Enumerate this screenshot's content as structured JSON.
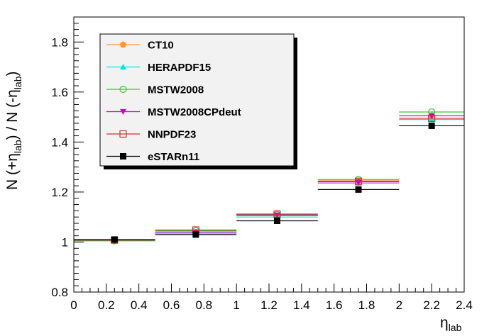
{
  "chart_data": {
    "type": "scatter",
    "xlabel_main": "η",
    "xlabel_sub": "lab",
    "ylabel_parts": {
      "n1": "N (+η",
      "sub1": "lab",
      "mid": ") / N (-η",
      "sub2": "lab",
      "end": ")"
    },
    "xlim": [
      0,
      2.4
    ],
    "ylim": [
      0.8,
      1.9
    ],
    "xticks": [
      "0",
      "0.2",
      "0.4",
      "0.6",
      "0.8",
      "1",
      "1.2",
      "1.4",
      "1.6",
      "1.8",
      "2",
      "2.2",
      "2.4"
    ],
    "yticks": [
      "0.8",
      "1",
      "1.2",
      "1.4",
      "1.6",
      "1.8"
    ],
    "grid": false,
    "legend_position": "top-left",
    "bins": [
      [
        0,
        0.5
      ],
      [
        0.5,
        1.0
      ],
      [
        1.0,
        1.5
      ],
      [
        1.5,
        2.0
      ],
      [
        2.0,
        2.4
      ]
    ],
    "series": [
      {
        "name": "CT10",
        "color": "#ff9933",
        "marker": "circle-filled",
        "x": [
          0.25,
          0.75,
          1.25,
          1.75,
          2.2
        ],
        "values": [
          1.005,
          1.04,
          1.105,
          1.245,
          1.505
        ]
      },
      {
        "name": "HERAPDF15",
        "color": "#00e6e6",
        "marker": "triangle-up-filled",
        "x": [
          0.25,
          0.75,
          1.25,
          1.75,
          2.2
        ],
        "values": [
          1.005,
          1.035,
          1.1,
          1.235,
          1.49
        ]
      },
      {
        "name": "MSTW2008",
        "color": "#33cc33",
        "marker": "circle-open",
        "x": [
          0.25,
          0.75,
          1.25,
          1.75,
          2.2
        ],
        "values": [
          1.005,
          1.045,
          1.11,
          1.25,
          1.52
        ]
      },
      {
        "name": "MSTW2008CPdeut",
        "color": "#cc00cc",
        "marker": "triangle-down-filled",
        "x": [
          0.25,
          0.75,
          1.25,
          1.75,
          2.2
        ],
        "values": [
          1.008,
          1.04,
          1.108,
          1.24,
          1.505
        ]
      },
      {
        "name": "NNPDF23",
        "color": "#cc3333",
        "marker": "square-open",
        "x": [
          0.25,
          0.75,
          1.25,
          1.75,
          2.2
        ],
        "values": [
          1.008,
          1.048,
          1.112,
          1.243,
          1.495
        ]
      },
      {
        "name": "eSTARn11",
        "color": "#000000",
        "marker": "square-filled",
        "x": [
          0.25,
          0.75,
          1.25,
          1.75,
          2.2
        ],
        "values": [
          1.01,
          1.03,
          1.085,
          1.21,
          1.465
        ]
      }
    ]
  }
}
